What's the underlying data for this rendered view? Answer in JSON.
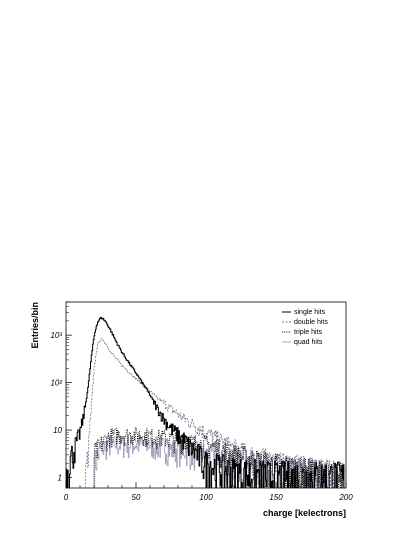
{
  "chart_data": {
    "type": "line",
    "title": "",
    "xlabel": "charge [kelectrons]",
    "ylabel": "Entries/bin",
    "xlim": [
      0,
      200
    ],
    "ylim": [
      0.6,
      5000
    ],
    "yscale": "log",
    "grid": false,
    "legend_position": "top-right",
    "x_ticks": [
      0,
      50,
      100,
      150,
      200
    ],
    "y_ticks": [
      {
        "value": 1,
        "label": "1"
      },
      {
        "value": 10,
        "label": "10"
      },
      {
        "value": 100,
        "label": "10²"
      },
      {
        "value": 1000,
        "label": "10³"
      }
    ],
    "series": [
      {
        "name": "single hits",
        "style": "solid",
        "color": "#000000",
        "x": [
          0,
          2,
          4,
          6,
          8,
          10,
          12,
          14,
          16,
          18,
          20,
          22,
          24,
          26,
          28,
          30,
          32,
          34,
          36,
          38,
          40,
          45,
          50,
          55,
          60,
          65,
          70,
          75,
          80,
          85,
          90,
          95,
          100,
          110,
          120,
          130,
          140,
          150,
          160,
          170,
          180,
          190,
          199
        ],
        "y": [
          1,
          2,
          3,
          4,
          6,
          9,
          16,
          35,
          90,
          320,
          900,
          1700,
          2200,
          2300,
          2000,
          1600,
          1250,
          950,
          720,
          560,
          440,
          260,
          160,
          95,
          55,
          30,
          17,
          11,
          8,
          6,
          4,
          3,
          2,
          1.6,
          1.3,
          1.2,
          1.1,
          1,
          1,
          1,
          1,
          1,
          1
        ]
      },
      {
        "name": "double hits",
        "style": "dashed",
        "color": "#7a7690",
        "x": [
          14,
          16,
          18,
          20,
          22,
          24,
          26,
          28,
          30,
          32,
          34,
          36,
          38,
          40,
          45,
          50,
          55,
          60,
          65,
          70,
          75,
          80,
          85,
          90,
          95,
          100,
          110,
          120,
          130,
          140,
          150,
          160,
          170,
          180,
          190,
          199
        ],
        "y": [
          1,
          4,
          30,
          180,
          520,
          770,
          800,
          700,
          560,
          450,
          380,
          320,
          270,
          230,
          165,
          120,
          90,
          65,
          48,
          37,
          28,
          22,
          17,
          14,
          11,
          9,
          6,
          4,
          3,
          2.4,
          1.9,
          1.6,
          1.4,
          1.2,
          1.1,
          1
        ]
      },
      {
        "name": "triple hits",
        "style": "dotted",
        "color": "#000000",
        "x": [
          20,
          25,
          30,
          35,
          40,
          45,
          50,
          55,
          60,
          65,
          70,
          75,
          80,
          85,
          90,
          95,
          100,
          105,
          110,
          115,
          120,
          130,
          140,
          150,
          160,
          170,
          180,
          190,
          199
        ],
        "y": [
          3,
          5,
          7,
          8,
          8,
          8,
          8,
          8,
          7.5,
          7,
          7,
          6.5,
          6,
          6,
          5.5,
          5,
          5,
          4.5,
          4,
          3.5,
          3,
          2.5,
          2,
          1.8,
          1.5,
          1.3,
          1.2,
          1.1,
          1
        ]
      },
      {
        "name": "quad hits",
        "style": "solid",
        "color": "#a8a4c0",
        "x": [
          20,
          25,
          30,
          35,
          40,
          45,
          50,
          55,
          60,
          65,
          70,
          75,
          80,
          85,
          90,
          95,
          100,
          105,
          110,
          115,
          120,
          130,
          140,
          150,
          160,
          170,
          180,
          190,
          199
        ],
        "y": [
          2,
          4,
          5,
          5,
          5,
          5,
          5,
          5,
          5,
          4.5,
          4.5,
          4,
          4,
          4,
          3.5,
          3.5,
          3,
          3,
          3,
          2.5,
          2.5,
          2,
          1.8,
          1.6,
          1.4,
          1.3,
          1.2,
          1.1,
          1
        ]
      }
    ]
  }
}
